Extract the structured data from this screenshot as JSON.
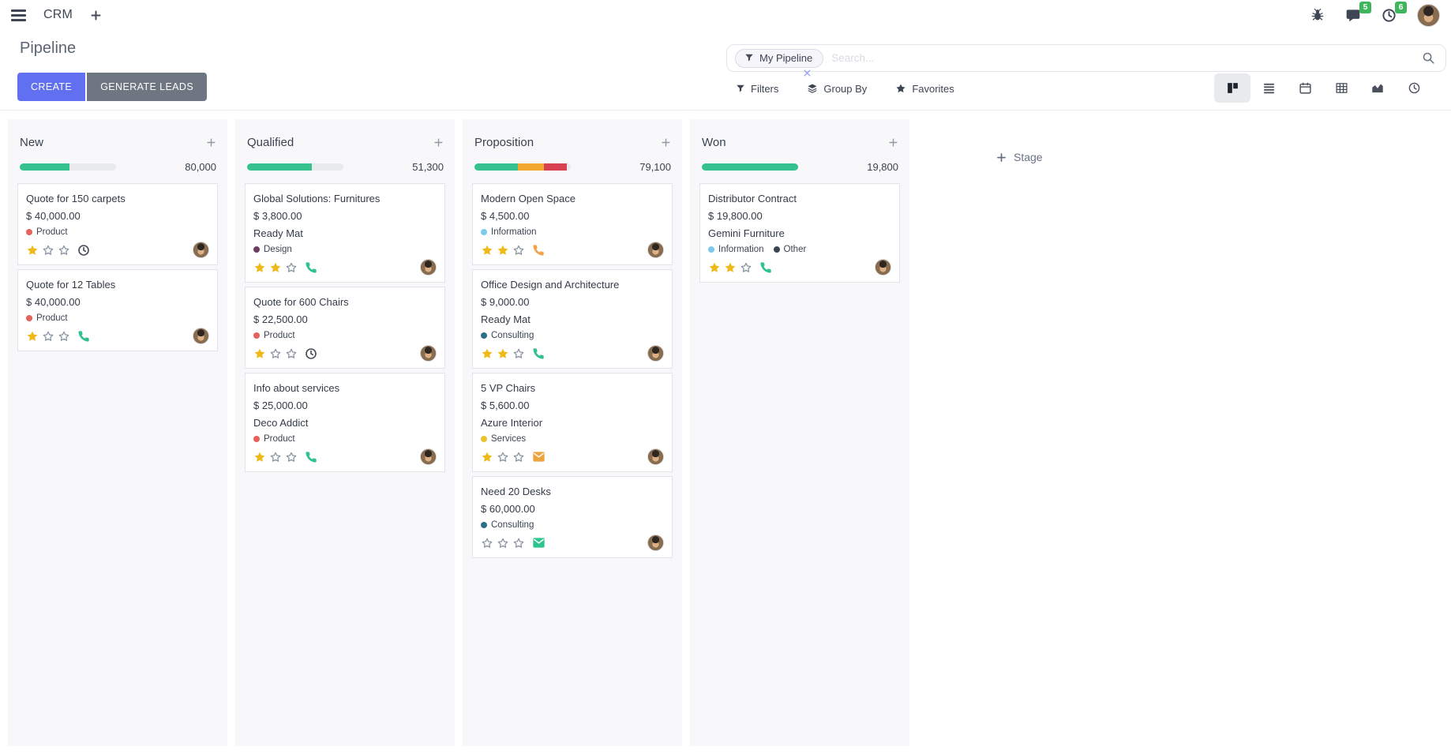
{
  "topbar": {
    "app": "CRM",
    "message_count": "5",
    "activity_count": "6"
  },
  "panel": {
    "title": "Pipeline",
    "create": "CREATE",
    "generate": "GENERATE LEADS",
    "facet": "My Pipeline",
    "search_placeholder": "Search...",
    "filters": "Filters",
    "group_by": "Group By",
    "favorites": "Favorites",
    "views": [
      "kanban",
      "list",
      "calendar",
      "pivot",
      "graph",
      "activity"
    ],
    "active_view": "kanban"
  },
  "board": {
    "add_stage": "Stage",
    "progress_gray": "#e8eaee",
    "columns": [
      {
        "name": "New",
        "total": "80,000",
        "progress": [
          {
            "color": "#35c28e",
            "pct": 52
          },
          {
            "color": "#e8eaee",
            "pct": 48
          }
        ],
        "cards": [
          {
            "title": "Quote for 150 carpets",
            "amount": "$ 40,000.00",
            "tags": [
              {
                "label": "Product",
                "color": "#e8615a"
              }
            ],
            "stars": 1,
            "activity": "clock",
            "activity_color": "#454b57"
          },
          {
            "title": "Quote for 12 Tables",
            "amount": "$ 40,000.00",
            "tags": [
              {
                "label": "Product",
                "color": "#e8615a"
              }
            ],
            "stars": 1,
            "activity": "phone",
            "activity_color": "#32c08d"
          }
        ]
      },
      {
        "name": "Qualified",
        "total": "51,300",
        "progress": [
          {
            "color": "#35c28e",
            "pct": 67
          },
          {
            "color": "#e8eaee",
            "pct": 33
          }
        ],
        "cards": [
          {
            "title": "Global Solutions: Furnitures",
            "amount": "$ 3,800.00",
            "company": "Ready Mat",
            "tags": [
              {
                "label": "Design",
                "color": "#6b3f60"
              }
            ],
            "stars": 2,
            "activity": "phone",
            "activity_color": "#32c08d"
          },
          {
            "title": "Quote for 600 Chairs",
            "amount": "$ 22,500.00",
            "tags": [
              {
                "label": "Product",
                "color": "#e8615a"
              }
            ],
            "stars": 1,
            "activity": "clock",
            "activity_color": "#454b57"
          },
          {
            "title": "Info about services",
            "amount": "$ 25,000.00",
            "company": "Deco Addict",
            "tags": [
              {
                "label": "Product",
                "color": "#e8615a"
              }
            ],
            "stars": 1,
            "activity": "phone",
            "activity_color": "#32c08d"
          }
        ]
      },
      {
        "name": "Proposition",
        "total": "79,100",
        "progress": [
          {
            "color": "#35c28e",
            "pct": 45
          },
          {
            "color": "#f2a72e",
            "pct": 27
          },
          {
            "color": "#d8414f",
            "pct": 24
          },
          {
            "color": "#e8eaee",
            "pct": 4
          }
        ],
        "cards": [
          {
            "title": "Modern Open Space",
            "amount": "$ 4,500.00",
            "tags": [
              {
                "label": "Information",
                "color": "#7ec8ed"
              }
            ],
            "stars": 2,
            "activity": "phone",
            "activity_color": "#f0a24c"
          },
          {
            "title": "Office Design and Architecture",
            "amount": "$ 9,000.00",
            "company": "Ready Mat",
            "tags": [
              {
                "label": "Consulting",
                "color": "#2c7086"
              }
            ],
            "stars": 2,
            "activity": "phone",
            "activity_color": "#32c08d"
          },
          {
            "title": "5 VP Chairs",
            "amount": "$ 5,600.00",
            "company": "Azure Interior",
            "tags": [
              {
                "label": "Services",
                "color": "#ecc32f"
              }
            ],
            "stars": 1,
            "activity": "envelope",
            "activity_color": "#eda43f"
          },
          {
            "title": "Need 20 Desks",
            "amount": "$ 60,000.00",
            "tags": [
              {
                "label": "Consulting",
                "color": "#2c7086"
              }
            ],
            "stars": 0,
            "activity": "envelope",
            "activity_color": "#2ec48d"
          }
        ]
      },
      {
        "name": "Won",
        "total": "19,800",
        "progress": [
          {
            "color": "#35c28e",
            "pct": 100
          }
        ],
        "cards": [
          {
            "title": "Distributor Contract",
            "amount": "$ 19,800.00",
            "company": "Gemini Furniture",
            "tags": [
              {
                "label": "Information",
                "color": "#7ec8ed"
              },
              {
                "label": "Other",
                "color": "#3b4553"
              }
            ],
            "stars": 2,
            "activity": "phone",
            "activity_color": "#32c08d"
          }
        ]
      }
    ]
  }
}
